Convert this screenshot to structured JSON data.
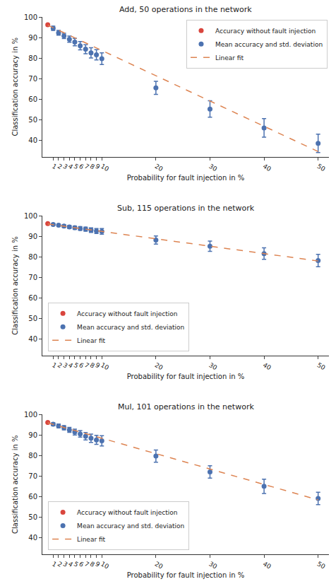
{
  "chart_data": [
    {
      "type": "scatter",
      "title": "Add, 50 operations in the network",
      "x_label": "Probability for fault injection in %",
      "y_label": "Classification accuracy in %",
      "xlim": [
        -1,
        52
      ],
      "xticks": [
        1,
        2,
        3,
        4,
        5,
        6,
        7,
        8,
        9,
        10,
        20,
        30,
        40,
        50
      ],
      "ylim": [
        32,
        100
      ],
      "yticks": [
        40,
        50,
        60,
        70,
        80,
        90,
        100
      ],
      "grid": false,
      "legend": "upper right",
      "series": [
        {
          "name": "Accuracy without fault injection",
          "color": "#d9453d",
          "type": "scatter",
          "marker": "circle",
          "x": [
            0
          ],
          "values": [
            96.2
          ]
        },
        {
          "name": "Mean accuracy and std. deviation",
          "color": "#4c72b0",
          "type": "scatter",
          "marker": "circle",
          "x": [
            1,
            2,
            3,
            4,
            5,
            6,
            7,
            8,
            9,
            10,
            20,
            30,
            40,
            50
          ],
          "values": [
            94.5,
            92.3,
            90.8,
            89.2,
            87.8,
            86.0,
            84.3,
            82.5,
            81.6,
            79.7,
            65.5,
            55.2,
            46.0,
            38.5
          ],
          "error": [
            1.0,
            1.2,
            1.3,
            1.5,
            1.8,
            2.0,
            2.2,
            2.5,
            2.5,
            2.8,
            3.2,
            4.0,
            4.5,
            4.5
          ]
        },
        {
          "name": "Linear fit",
          "color": "#dd8452",
          "type": "line",
          "line_style": "dashed",
          "x": [
            0,
            50
          ],
          "values": [
            96.0,
            34.5
          ]
        }
      ]
    },
    {
      "type": "scatter",
      "title": "Sub, 115 operations in the network",
      "x_label": "Probability for fault injection in %",
      "y_label": "Classification accuracy in %",
      "xlim": [
        -1,
        52
      ],
      "xticks": [
        1,
        2,
        3,
        4,
        5,
        6,
        7,
        8,
        9,
        10,
        20,
        30,
        40,
        50
      ],
      "ylim": [
        32,
        100
      ],
      "yticks": [
        40,
        50,
        60,
        70,
        80,
        90,
        100
      ],
      "grid": false,
      "legend": "lower left",
      "series": [
        {
          "name": "Accuracy without fault injection",
          "color": "#d9453d",
          "type": "scatter",
          "marker": "circle",
          "x": [
            0
          ],
          "values": [
            96.2
          ]
        },
        {
          "name": "Mean accuracy and std. deviation",
          "color": "#4c72b0",
          "type": "scatter",
          "marker": "circle",
          "x": [
            1,
            2,
            3,
            4,
            5,
            6,
            7,
            8,
            9,
            10,
            20,
            30,
            40,
            50
          ],
          "values": [
            95.8,
            95.4,
            95.0,
            94.6,
            94.2,
            93.8,
            93.5,
            93.0,
            92.6,
            92.4,
            88.2,
            85.2,
            81.6,
            78.2
          ],
          "error": [
            0.4,
            0.5,
            0.6,
            0.7,
            0.8,
            0.9,
            1.0,
            1.1,
            1.2,
            1.4,
            2.0,
            2.5,
            2.8,
            3.0
          ]
        },
        {
          "name": "Linear fit",
          "color": "#dd8452",
          "type": "line",
          "line_style": "dashed",
          "x": [
            0,
            50
          ],
          "values": [
            96.0,
            78.0
          ]
        }
      ]
    },
    {
      "type": "scatter",
      "title": "Mul, 101 operations in the network",
      "x_label": "Probability for fault injection in %",
      "y_label": "Classification accuracy in %",
      "xlim": [
        -1,
        52
      ],
      "xticks": [
        1,
        2,
        3,
        4,
        5,
        6,
        7,
        8,
        9,
        10,
        20,
        30,
        40,
        50
      ],
      "ylim": [
        32,
        100
      ],
      "yticks": [
        40,
        50,
        60,
        70,
        80,
        90,
        100
      ],
      "grid": false,
      "legend": "lower left",
      "series": [
        {
          "name": "Accuracy without fault injection",
          "color": "#d9453d",
          "type": "scatter",
          "marker": "circle",
          "x": [
            0
          ],
          "values": [
            96.2
          ]
        },
        {
          "name": "Mean accuracy and std. deviation",
          "color": "#4c72b0",
          "type": "scatter",
          "marker": "circle",
          "x": [
            1,
            2,
            3,
            4,
            5,
            6,
            7,
            8,
            9,
            10,
            20,
            30,
            40,
            50
          ],
          "values": [
            95.3,
            94.5,
            93.6,
            92.6,
            91.5,
            90.6,
            89.5,
            88.5,
            87.7,
            87.2,
            79.8,
            72.1,
            65.1,
            59.2
          ],
          "error": [
            0.7,
            0.9,
            1.0,
            1.2,
            1.4,
            1.6,
            1.8,
            2.0,
            2.2,
            2.5,
            3.0,
            3.0,
            3.5,
            3.0
          ]
        },
        {
          "name": "Linear fit",
          "color": "#dd8452",
          "type": "line",
          "line_style": "dashed",
          "x": [
            0,
            50
          ],
          "values": [
            96.0,
            58.5
          ]
        }
      ]
    }
  ]
}
